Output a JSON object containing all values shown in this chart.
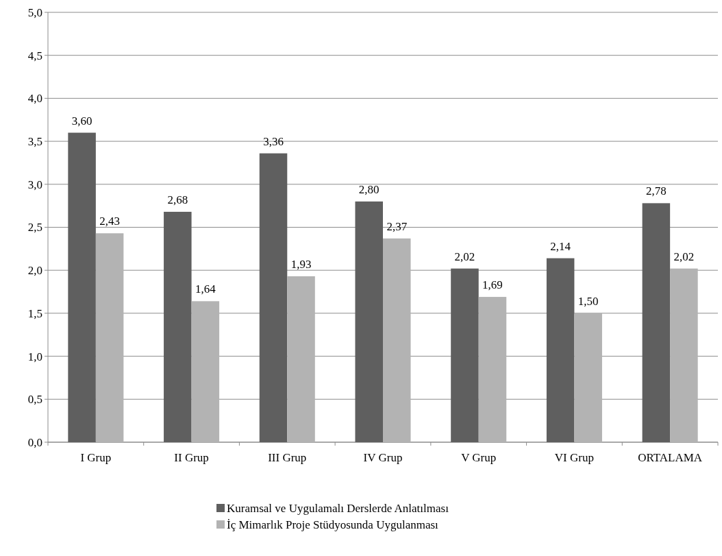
{
  "chart_data": {
    "type": "bar",
    "categories": [
      "I Grup",
      "II Grup",
      "III Grup",
      "IV Grup",
      "V Grup",
      "VI Grup",
      "ORTALAMA"
    ],
    "series": [
      {
        "name": "Kuramsal ve Uygulamalı Derslerde Anlatılması",
        "color": "#5f5f5f",
        "values": [
          3.6,
          2.68,
          3.36,
          2.8,
          2.02,
          2.14,
          2.78
        ],
        "value_labels": [
          "3,60",
          "2,68",
          "3,36",
          "2,80",
          "2,02",
          "2,14",
          "2,78"
        ]
      },
      {
        "name": "İç Mimarlık Proje Stüdyosunda Uygulanması",
        "color": "#b3b3b3",
        "values": [
          2.43,
          1.64,
          1.93,
          2.37,
          1.69,
          1.5,
          2.02
        ],
        "value_labels": [
          "2,43",
          "1,64",
          "1,93",
          "2,37",
          "1,69",
          "1,50",
          "2,02"
        ]
      }
    ],
    "ylim": [
      0,
      5
    ],
    "yticks": [
      {
        "value": 0,
        "label": "0,0"
      },
      {
        "value": 0.5,
        "label": "0,5"
      },
      {
        "value": 1,
        "label": "1,0"
      },
      {
        "value": 1.5,
        "label": "1,5"
      },
      {
        "value": 2,
        "label": "2,0"
      },
      {
        "value": 2.5,
        "label": "2,5"
      },
      {
        "value": 3,
        "label": "3,0"
      },
      {
        "value": 3.5,
        "label": "3,5"
      },
      {
        "value": 4,
        "label": "4,0"
      },
      {
        "value": 4.5,
        "label": "4,5"
      },
      {
        "value": 5,
        "label": "5,0"
      }
    ],
    "grid": "y",
    "legend": "bottom"
  }
}
